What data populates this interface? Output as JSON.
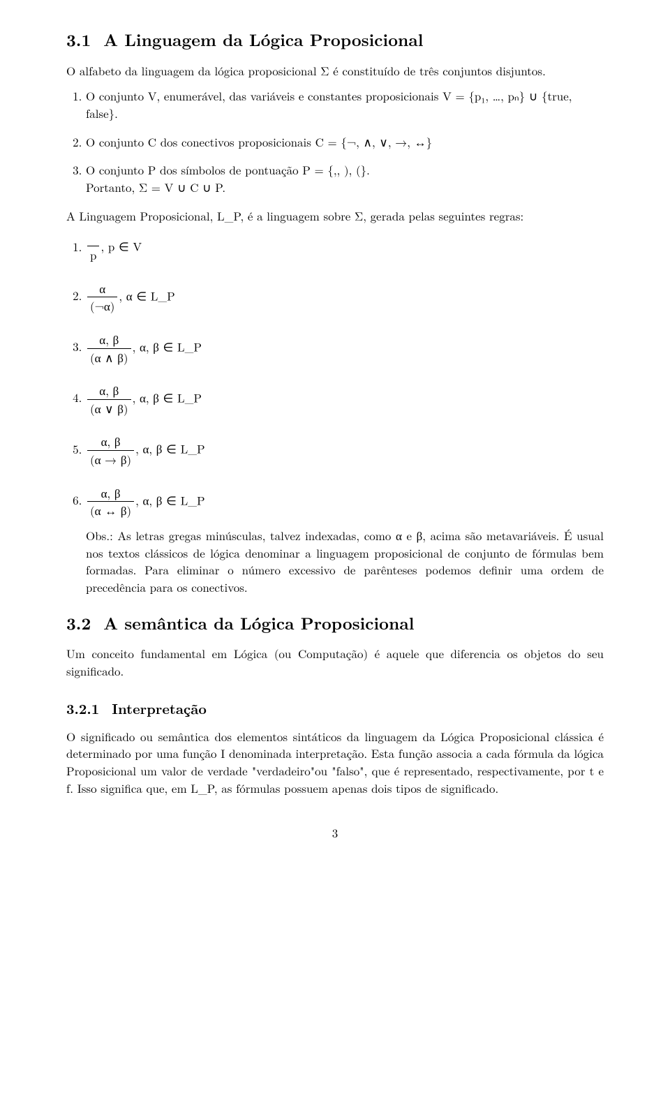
{
  "section31": {
    "number": "3.1",
    "title": "A Linguagem da Lógica Proposicional",
    "intro": "O alfabeto da linguagem da lógica proposicional Σ é constituído de três conjuntos disjuntos.",
    "items": [
      "O conjunto V, enumerável, das variáveis e constantes proposicionais V = {p₁, …, pₙ} ∪ {true, false}.",
      "O conjunto C dos conectivos proposicionais C = {¬, ∧, ∨, →, ↔}",
      "O conjunto P dos símbolos de pontuação P = {,, ), (}."
    ],
    "portanto": "Portanto, Σ = V ∪ C ∪ P.",
    "lp_text": "A Linguagem Proposicional, L_P, é a linguagem sobre Σ, gerada pelas seguintes regras:",
    "rules": [
      {
        "num": "",
        "den": "p",
        "cond": ",  p ∈ V"
      },
      {
        "num": "α",
        "den": "(¬α)",
        "cond": ",   α ∈ L_P"
      },
      {
        "num": "α, β",
        "den": "(α ∧ β)",
        "cond": ",   α, β ∈ L_P"
      },
      {
        "num": "α, β",
        "den": "(α ∨ β)",
        "cond": ",   α, β ∈ L_P"
      },
      {
        "num": "α, β",
        "den": "(α → β)",
        "cond": ",   α, β ∈ L_P"
      },
      {
        "num": "α, β",
        "den": "(α ↔ β)",
        "cond": ",   α, β ∈ L_P"
      }
    ],
    "obs": "Obs.: As letras gregas minúsculas, talvez indexadas, como α e β, acima são metavariáveis. É usual nos textos clássicos de lógica denominar a linguagem proposicional de conjunto de fórmulas bem formadas. Para eliminar o número excessivo de parênteses podemos definir uma ordem de precedência para os conectivos."
  },
  "section32": {
    "number": "3.2",
    "title": "A semântica da Lógica Proposicional",
    "intro": "Um conceito fundamental em Lógica (ou Computação) é aquele que diferencia os objetos do seu significado."
  },
  "section321": {
    "number": "3.2.1",
    "title": "Interpretação",
    "body": "O significado ou semântica dos elementos sintáticos da linguagem da Lógica Proposicional clássica é determinado por uma função I denominada interpretação. Esta função associa a cada fórmula da lógica Proposicional um valor de verdade \"verdadeiro\"ou \"falso\", que é representado, respectivamente, por t e f. Isso significa que, em L_P, as fórmulas possuem apenas dois tipos de significado."
  },
  "pagenum": "3"
}
